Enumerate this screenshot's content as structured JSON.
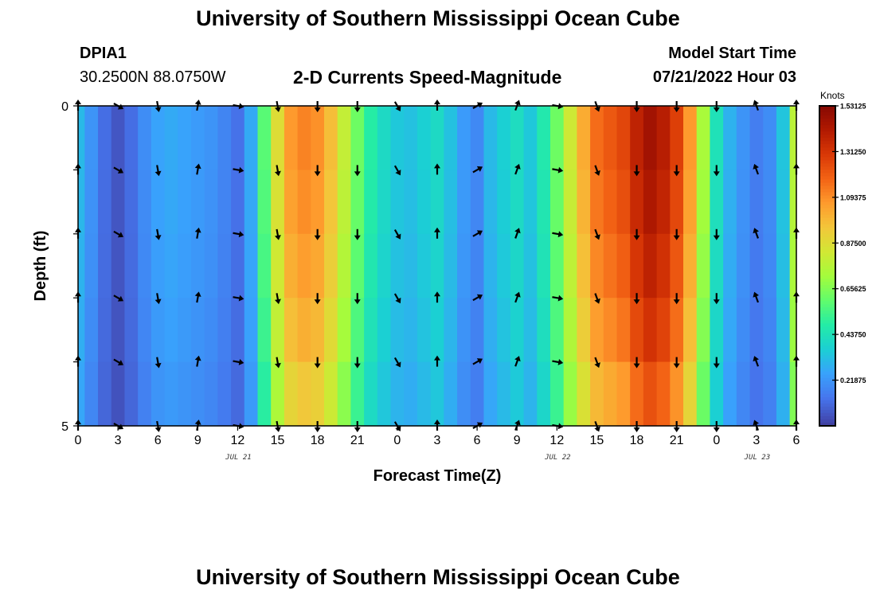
{
  "header": {
    "title": "University of Southern Mississippi Ocean Cube",
    "station_id": "DPIA1",
    "station_coords": "30.2500N  88.0750W",
    "subtitle": "2-D Currents Speed-Magnitude",
    "model_start_label": "Model Start Time",
    "model_start_value": "07/21/2022 Hour 03"
  },
  "footer": {
    "title": "University of Southern Mississippi Ocean Cube"
  },
  "chart_data": {
    "type": "heatmap",
    "title": "2-D Currents Speed-Magnitude",
    "xlabel": "Forecast Time(Z)",
    "ylabel": "Depth (ft)",
    "x_tick_labels": [
      "0",
      "3",
      "6",
      "9",
      "12",
      "15",
      "18",
      "21",
      "0",
      "3",
      "6",
      "9",
      "12",
      "15",
      "18",
      "21",
      "0",
      "3",
      "6"
    ],
    "x_range_hours": [
      0,
      54
    ],
    "y_tick_labels": [
      "0",
      "5"
    ],
    "y_range": [
      0,
      5
    ],
    "date_labels": [
      {
        "text": "JUL 21",
        "hour": 12
      },
      {
        "text": "JUL 22",
        "hour": 36
      },
      {
        "text": "JUL 23",
        "hour": 51
      }
    ],
    "colorbar": {
      "label": "Knots",
      "min": 0.0,
      "max": 1.53125,
      "tick_labels": [
        "1.53125",
        "1.31250",
        "1.09375",
        "0.87500",
        "0.65625",
        "0.43750",
        "0.21875"
      ],
      "tick_values": [
        1.53125,
        1.3125,
        1.09375,
        0.875,
        0.65625,
        0.4375,
        0.21875
      ]
    },
    "speed_profile": {
      "hours": [
        0,
        1,
        2,
        3,
        4,
        5,
        6,
        7,
        8,
        9,
        10,
        11,
        12,
        13,
        14,
        15,
        16,
        17,
        18,
        19,
        20,
        21,
        22,
        23,
        24,
        25,
        26,
        27,
        28,
        29,
        30,
        31,
        32,
        33,
        34,
        35,
        36,
        37,
        38,
        39,
        40,
        41,
        42,
        43,
        44,
        45,
        46,
        47,
        48,
        49,
        50,
        51,
        52,
        53,
        54
      ],
      "surface_knots": [
        0.32,
        0.22,
        0.12,
        0.06,
        0.12,
        0.2,
        0.26,
        0.28,
        0.26,
        0.24,
        0.22,
        0.18,
        0.13,
        0.28,
        0.6,
        0.9,
        1.1,
        1.15,
        1.12,
        1.0,
        0.82,
        0.64,
        0.5,
        0.42,
        0.36,
        0.34,
        0.38,
        0.42,
        0.34,
        0.24,
        0.19,
        0.32,
        0.38,
        0.43,
        0.36,
        0.48,
        0.64,
        0.85,
        1.05,
        1.2,
        1.25,
        1.3,
        1.42,
        1.5,
        1.44,
        1.32,
        1.1,
        0.75,
        0.45,
        0.3,
        0.22,
        0.16,
        0.2,
        0.35,
        0.8
      ]
    },
    "depth_rows": [
      {
        "depth": 0.5,
        "factor": 0.97
      },
      {
        "depth": 1.5,
        "factor": 0.95
      },
      {
        "depth": 2.5,
        "factor": 0.92
      },
      {
        "depth": 3.5,
        "factor": 0.88
      },
      {
        "depth": 4.5,
        "factor": 0.82
      }
    ],
    "arrow_depths": [
      0,
      1,
      2,
      3,
      4,
      5
    ],
    "arrows": [
      {
        "hour": 0,
        "dir_deg": 0
      },
      {
        "hour": 3,
        "dir_deg": 120
      },
      {
        "hour": 6,
        "dir_deg": 170
      },
      {
        "hour": 9,
        "dir_deg": 10
      },
      {
        "hour": 12,
        "dir_deg": 100
      },
      {
        "hour": 15,
        "dir_deg": 170
      },
      {
        "hour": 18,
        "dir_deg": 180
      },
      {
        "hour": 21,
        "dir_deg": 180
      },
      {
        "hour": 0,
        "dir_deg": 150,
        "day": 1
      },
      {
        "hour": 3,
        "dir_deg": 0,
        "day": 1
      },
      {
        "hour": 6,
        "dir_deg": 60,
        "day": 1
      },
      {
        "hour": 9,
        "dir_deg": 20,
        "day": 1
      },
      {
        "hour": 12,
        "dir_deg": 100,
        "day": 1
      },
      {
        "hour": 15,
        "dir_deg": 160,
        "day": 1
      },
      {
        "hour": 18,
        "dir_deg": 180,
        "day": 1
      },
      {
        "hour": 21,
        "dir_deg": 180,
        "day": 1
      },
      {
        "hour": 0,
        "dir_deg": 180,
        "day": 2
      },
      {
        "hour": 3,
        "dir_deg": 340,
        "day": 2
      },
      {
        "hour": 6,
        "dir_deg": 0,
        "day": 2
      }
    ]
  }
}
